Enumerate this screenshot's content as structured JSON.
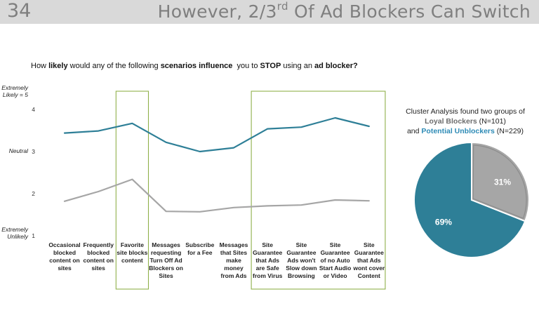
{
  "header": {
    "slide_number": "34",
    "title_pre": "However, 2/3",
    "title_sup": "rd",
    "title_post": " Of Ad Blockers Can Switch"
  },
  "question": {
    "p1": "How ",
    "b1": "likely",
    "p2": " would any of the following ",
    "b2": "scenarios influence",
    "p3": "  you to ",
    "b3": "STOP",
    "p4": " using an ",
    "b4": "ad blocker?"
  },
  "colors": {
    "loyal": "#a6a6a6",
    "unblock": "#2e7f97",
    "highlight": "#8fb04a"
  },
  "chart_data": [
    {
      "type": "line",
      "title": "How likely would any of the following scenarios influence you to STOP using an ad blocker?",
      "ylim": [
        1,
        4
      ],
      "y_ticks": [
        "1",
        "2",
        "3",
        "4"
      ],
      "y_anchor_labels": [
        {
          "value": 4,
          "lines": [
            "Extremely",
            "Likely = 5"
          ]
        },
        {
          "value": 3,
          "lines": [
            "Neutral"
          ]
        },
        {
          "value": 1,
          "lines": [
            "Extremely",
            "Unlikely"
          ]
        }
      ],
      "categories": [
        [
          "Occasional",
          "blocked",
          "content on",
          "sites"
        ],
        [
          "Frequently",
          "blocked",
          "content on",
          "sites"
        ],
        [
          "Favorite",
          "site blocks",
          "content"
        ],
        [
          "Messages",
          "requesting",
          "Turn Off Ad",
          "Blockers on",
          "Sites"
        ],
        [
          "Subscribe",
          "for a Fee"
        ],
        [
          "Messages",
          "that Sites",
          "make",
          "money",
          "from Ads"
        ],
        [
          "Site",
          "Guarantee",
          "that Ads",
          "are Safe",
          "from Virus"
        ],
        [
          "Site",
          "Guarantee",
          "Ads won't",
          "Slow down",
          "Browsing"
        ],
        [
          "Site",
          "Guarantee",
          "of no Auto",
          "Start Audio",
          "or Video"
        ],
        [
          "Site",
          "Guarantee",
          "that Ads",
          "wont cover",
          "Content"
        ]
      ],
      "series": [
        {
          "name": "Potential Unblockers",
          "values": [
            3.44,
            3.49,
            3.67,
            3.22,
            3.0,
            3.09,
            3.54,
            3.58,
            3.8,
            3.6
          ]
        },
        {
          "name": "Loyal Blockers",
          "values": [
            1.82,
            2.05,
            2.34,
            1.58,
            1.57,
            1.67,
            1.71,
            1.73,
            1.85,
            1.83
          ]
        }
      ],
      "highlighted_categories": [
        [
          2,
          2
        ],
        [
          6,
          9
        ]
      ]
    },
    {
      "type": "pie",
      "title_lines": [
        "Cluster Analysis found two groups of"
      ],
      "slices": [
        {
          "name": "Potential Unblockers",
          "value": 69,
          "label": "69%"
        },
        {
          "name": "Loyal Blockers",
          "value": 31,
          "label": "31%"
        }
      ]
    }
  ],
  "cluster_text": {
    "line1": "Cluster Analysis found two groups of",
    "loyal": "Loyal Blockers",
    "loyal_n": " (N=101)",
    "and": "and ",
    "unblock": "Potential Unblockers",
    "unblock_n": " (N=229)"
  }
}
